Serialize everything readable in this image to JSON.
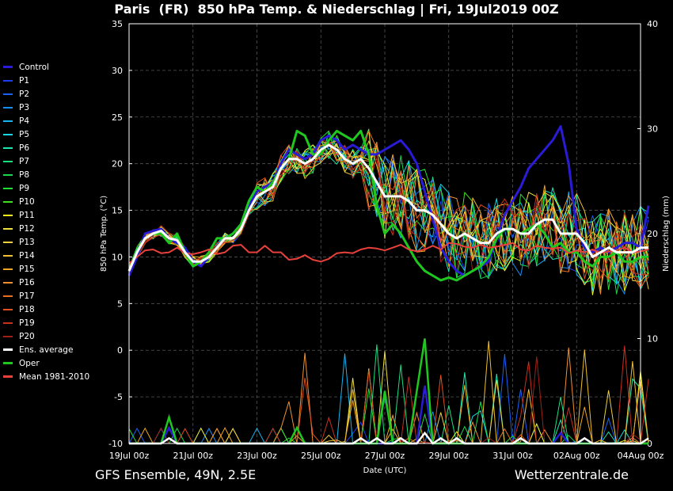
{
  "title": "Paris  (FR)  850 hPa Temp. & Niederschlag | Fri, 19Jul2019 00Z",
  "footer_left": "GFS Ensemble, 49N, 2.5E",
  "footer_right": "Wetterzentrale.de",
  "chart_data": {
    "type": "line",
    "xlabel": "Date (UTC)",
    "ylabel_left": "850 hPa Temp. (°C)",
    "ylabel_right": "Niederschlag (mm)",
    "x_tick_labels": [
      "19Jul 00z",
      "21Jul 00z",
      "23Jul 00z",
      "25Jul 00z",
      "27Jul 00z",
      "29Jul 00z",
      "31Jul 00z",
      "02Aug 00z",
      "04Aug 00z"
    ],
    "x_range_hours": [
      0,
      384
    ],
    "x_step_hours": 6,
    "y_left_ticks": [
      35,
      30,
      25,
      20,
      15,
      10,
      5,
      0,
      -5,
      -10
    ],
    "y_left_range": [
      -10,
      35
    ],
    "y_right_ticks": [
      40,
      30,
      20,
      10,
      0
    ],
    "y_right_range": [
      0,
      40
    ],
    "grid": true,
    "legend_position": "left",
    "series": [
      {
        "name": "Control",
        "color": "#2a1bd6",
        "width": 3.0,
        "temp": [
          8.0,
          10.0,
          12.5,
          12.8,
          13.0,
          12.0,
          11.5,
          11.0,
          9.5,
          9.0,
          10.0,
          11.0,
          12.0,
          12.5,
          13.5,
          15.5,
          17.0,
          17.5,
          18.0,
          20.0,
          21.5,
          21.0,
          20.5,
          21.0,
          22.5,
          23.0,
          22.5,
          21.5,
          22.0,
          21.5,
          21.0,
          21.0,
          21.5,
          22.0,
          22.5,
          21.5,
          20.0,
          17.0,
          14.0,
          11.0,
          9.5,
          8.5,
          8.0,
          8.5,
          9.0,
          9.5,
          12.0,
          14.5,
          16.0,
          17.5,
          19.5,
          20.5,
          21.5,
          22.5,
          24.0,
          20.0,
          13.0,
          11.0,
          10.5,
          11.0,
          10.5,
          11.0,
          11.5,
          11.5,
          11.0,
          15.5
        ],
        "precip": [
          0,
          0,
          0,
          0,
          0,
          1.5,
          0,
          0,
          0,
          0,
          0,
          0,
          0,
          0,
          0,
          0,
          0,
          0,
          0,
          0,
          0,
          0,
          0,
          0,
          0,
          0,
          0,
          0,
          0,
          0,
          0,
          0,
          0,
          0,
          0.5,
          0,
          0,
          5.5,
          0,
          0,
          0,
          0,
          0,
          0,
          0,
          0,
          0,
          0,
          0,
          0,
          0,
          0,
          0,
          0,
          1.0,
          0,
          0,
          0,
          0,
          0,
          0,
          0,
          0,
          0,
          0,
          0
        ]
      },
      {
        "name": "P1",
        "color": "#1c3cf0",
        "width": 1.0,
        "temp": null,
        "precip": null
      },
      {
        "name": "P2",
        "color": "#1a62f5",
        "width": 1.0,
        "temp": null,
        "precip": null
      },
      {
        "name": "P3",
        "color": "#158ef5",
        "width": 1.0,
        "temp": null,
        "precip": null
      },
      {
        "name": "P4",
        "color": "#16b4f0",
        "width": 1.0,
        "temp": null,
        "precip": null
      },
      {
        "name": "P5",
        "color": "#18d8e0",
        "width": 1.0,
        "temp": null,
        "precip": null
      },
      {
        "name": "P6",
        "color": "#19e8b0",
        "width": 1.0,
        "temp": null,
        "precip": null
      },
      {
        "name": "P7",
        "color": "#1ae080",
        "width": 1.0,
        "temp": null,
        "precip": null
      },
      {
        "name": "P8",
        "color": "#1ad850",
        "width": 1.0,
        "temp": null,
        "precip": null
      },
      {
        "name": "P9",
        "color": "#1ee030",
        "width": 1.0,
        "temp": null,
        "precip": null
      },
      {
        "name": "P10",
        "color": "#40e020",
        "width": 1.0,
        "temp": null,
        "precip": null
      },
      {
        "name": "P11",
        "color": "#f0f020",
        "width": 1.0,
        "temp": null,
        "precip": null
      },
      {
        "name": "P12",
        "color": "#f0e040",
        "width": 1.0,
        "temp": null,
        "precip": null
      },
      {
        "name": "P13",
        "color": "#f0d040",
        "width": 1.0,
        "temp": null,
        "precip": null
      },
      {
        "name": "P14",
        "color": "#f0c030",
        "width": 1.0,
        "temp": null,
        "precip": null
      },
      {
        "name": "P15",
        "color": "#f0a820",
        "width": 1.0,
        "temp": null,
        "precip": null
      },
      {
        "name": "P16",
        "color": "#f09030",
        "width": 1.0,
        "temp": null,
        "precip": null
      },
      {
        "name": "P17",
        "color": "#e87020",
        "width": 1.0,
        "temp": null,
        "precip": null
      },
      {
        "name": "P18",
        "color": "#e05020",
        "width": 1.0,
        "temp": null,
        "precip": null
      },
      {
        "name": "P19",
        "color": "#c83020",
        "width": 1.0,
        "temp": null,
        "precip": null
      },
      {
        "name": "P20",
        "color": "#a02018",
        "width": 1.0,
        "temp": null,
        "precip": null
      },
      {
        "name": "Ens. average",
        "color": "#ffffff",
        "width": 3.0,
        "temp": [
          8.5,
          10.5,
          12.0,
          12.5,
          12.8,
          12.0,
          11.8,
          10.5,
          9.5,
          9.5,
          10.0,
          11.0,
          12.0,
          12.0,
          13.0,
          15.0,
          16.5,
          17.0,
          17.5,
          19.5,
          20.5,
          20.5,
          20.0,
          20.5,
          21.5,
          22.0,
          21.5,
          20.5,
          20.0,
          20.5,
          19.5,
          18.0,
          16.5,
          16.5,
          16.5,
          16.0,
          15.0,
          15.0,
          14.5,
          13.5,
          12.5,
          12.0,
          12.5,
          12.0,
          11.5,
          11.5,
          12.5,
          13.0,
          13.0,
          12.5,
          12.5,
          13.5,
          14.0,
          14.0,
          12.5,
          12.5,
          12.5,
          11.5,
          10.0,
          10.5,
          11.0,
          10.5,
          10.5,
          10.5,
          11.0,
          11.0
        ],
        "precip": [
          0,
          0,
          0,
          0,
          0,
          0.5,
          0,
          0,
          0,
          0,
          0,
          0,
          0,
          0,
          0,
          0,
          0,
          0,
          0,
          0,
          0,
          0,
          0,
          0,
          0,
          0,
          0,
          0,
          0,
          0.5,
          0,
          0.5,
          0,
          0,
          0.5,
          0,
          0,
          1.0,
          0,
          0.5,
          0,
          0.5,
          0,
          0,
          0,
          0,
          0,
          0,
          0,
          0.5,
          0,
          0,
          0,
          0,
          0,
          0,
          0,
          0.5,
          0,
          0,
          0,
          0,
          0,
          0,
          0,
          0.5
        ]
      },
      {
        "name": "Oper",
        "color": "#1ec81e",
        "width": 3.0,
        "temp": [
          8.5,
          10.5,
          12.0,
          12.5,
          12.5,
          11.5,
          12.5,
          10.5,
          9.0,
          9.5,
          10.5,
          12.0,
          12.0,
          12.5,
          13.5,
          16.0,
          17.5,
          17.0,
          18.0,
          19.5,
          20.5,
          23.5,
          23.0,
          21.0,
          21.0,
          22.5,
          23.5,
          23.0,
          22.5,
          23.5,
          21.0,
          15.5,
          12.5,
          13.5,
          12.5,
          11.0,
          9.5,
          8.5,
          8.0,
          7.5,
          7.8,
          7.5,
          8.0,
          8.5,
          9.0,
          10.0,
          12.0,
          13.0,
          13.0,
          12.5,
          13.0,
          13.5,
          12.5,
          11.0,
          11.5,
          10.5,
          10.5,
          9.5,
          9.0,
          10.0,
          10.0,
          10.5,
          9.5,
          9.5,
          10.0,
          10.0
        ],
        "precip": [
          0,
          0,
          0,
          0,
          0,
          2.5,
          0,
          0,
          0,
          0,
          0,
          0,
          0,
          0,
          0,
          0,
          0,
          0,
          0,
          0,
          0,
          1.5,
          0,
          0,
          0,
          0,
          0,
          0,
          0,
          0,
          0,
          0,
          5.0,
          0,
          0,
          0,
          5.0,
          10.0,
          0,
          0,
          0,
          0,
          0,
          0,
          0,
          0,
          0,
          0,
          0,
          0,
          0,
          0,
          0,
          0,
          0,
          0,
          0,
          0,
          0,
          0,
          0,
          0,
          0,
          0,
          0,
          0
        ]
      },
      {
        "name": "Mean 1981-2010",
        "color": "#e8413c",
        "width": 2.0,
        "temp": [
          9.3,
          10.0,
          10.7,
          10.8,
          10.4,
          10.5,
          11.0,
          10.4,
          10.3,
          10.5,
          10.8,
          10.3,
          10.5,
          11.2,
          11.3,
          10.5,
          10.5,
          11.2,
          10.5,
          10.5,
          9.7,
          9.8,
          10.2,
          9.7,
          9.5,
          9.8,
          10.4,
          10.5,
          10.4,
          10.8,
          11.0,
          10.9,
          10.7,
          11.0,
          11.3,
          10.8,
          10.6,
          10.8,
          11.2,
          10.8,
          11.5,
          11.4,
          11.1,
          11.0,
          11.3,
          11.0,
          11.1,
          11.3,
          11.5,
          10.8,
          10.7,
          11.2,
          11.0,
          10.9,
          11.0,
          10.4,
          10.7,
          10.5,
          10.8,
          10.4,
          10.6,
          10.7,
          11.0,
          10.5,
          10.6,
          10.8
        ],
        "precip": null
      }
    ]
  }
}
